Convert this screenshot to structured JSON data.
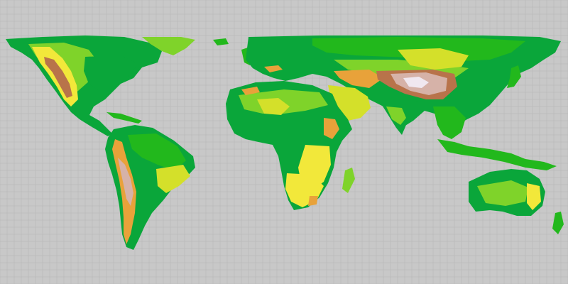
{
  "map": {
    "type": "world elevation map",
    "projection": "equirectangular",
    "grid": true,
    "colors": {
      "ocean": "#c8c8c8",
      "grid": "#b4b4b4",
      "lowland": "#0aa63a",
      "green": "#22b81c",
      "light_green": "#7fd32a",
      "upland": "#d4e02a",
      "yellow": "#f2e83a",
      "orange": "#e8a23a",
      "brown": "#b8734a",
      "high": "#d6b2a8",
      "peaks": "#f0e8f0"
    },
    "features": [
      "north-america",
      "south-america",
      "greenland",
      "africa",
      "eurasia",
      "arabia",
      "india",
      "southeast-asia",
      "japan",
      "indonesia",
      "australia",
      "madagascar",
      "new-zealand",
      "british-isles",
      "iceland",
      "caribbean",
      "tibetan-plateau",
      "rocky-mountains",
      "andes",
      "himalaya",
      "ethiopian-highlands",
      "atlas-mountains",
      "alps",
      "great-dividing-range"
    ]
  }
}
